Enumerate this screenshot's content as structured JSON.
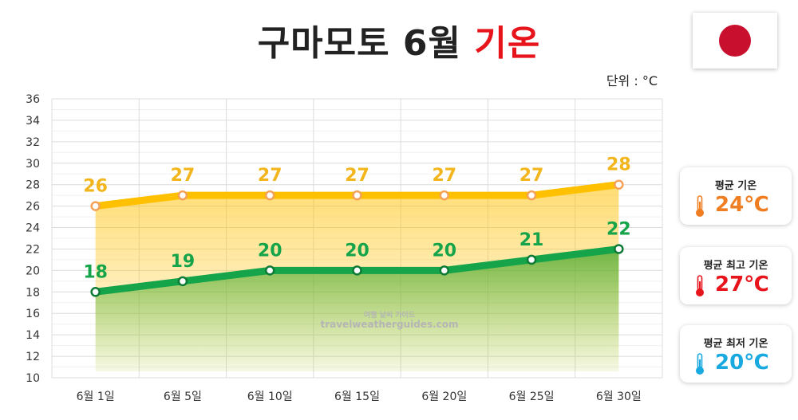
{
  "header": {
    "title_main": "구마모토 6월 ",
    "title_accent": "기온",
    "unit": "단위 : °C"
  },
  "watermark": {
    "line1": "여행 날씨 가이드",
    "line2": "travelweatherguides.com"
  },
  "colors": {
    "high": "#ffc000",
    "low": "#16a44a",
    "high_label": "#f2b51b",
    "low_label": "#16a44a",
    "avg": "#ef7d22",
    "max": "#e8141c",
    "min": "#17a9e0"
  },
  "chart_data": {
    "type": "line",
    "categories": [
      "6월 1일",
      "6월 5일",
      "6월 10일",
      "6월 15일",
      "6월 20일",
      "6월 25일",
      "6월 30일"
    ],
    "series": [
      {
        "key": "high",
        "values": [
          26,
          27,
          27,
          27,
          27,
          27,
          28
        ]
      },
      {
        "key": "low",
        "values": [
          18,
          19,
          20,
          20,
          20,
          21,
          22
        ]
      }
    ],
    "ylim": [
      10,
      36
    ],
    "yticks": [
      10,
      12,
      14,
      16,
      18,
      20,
      22,
      24,
      26,
      28,
      30,
      32,
      34,
      36
    ],
    "grid": true
  },
  "summary": [
    {
      "label": "평균 기온",
      "value": "24℃",
      "color_key": "avg"
    },
    {
      "label": "평균 최고 기온",
      "value": "27℃",
      "color_key": "max"
    },
    {
      "label": "평균 최저 기온",
      "value": "20℃",
      "color_key": "min"
    }
  ]
}
